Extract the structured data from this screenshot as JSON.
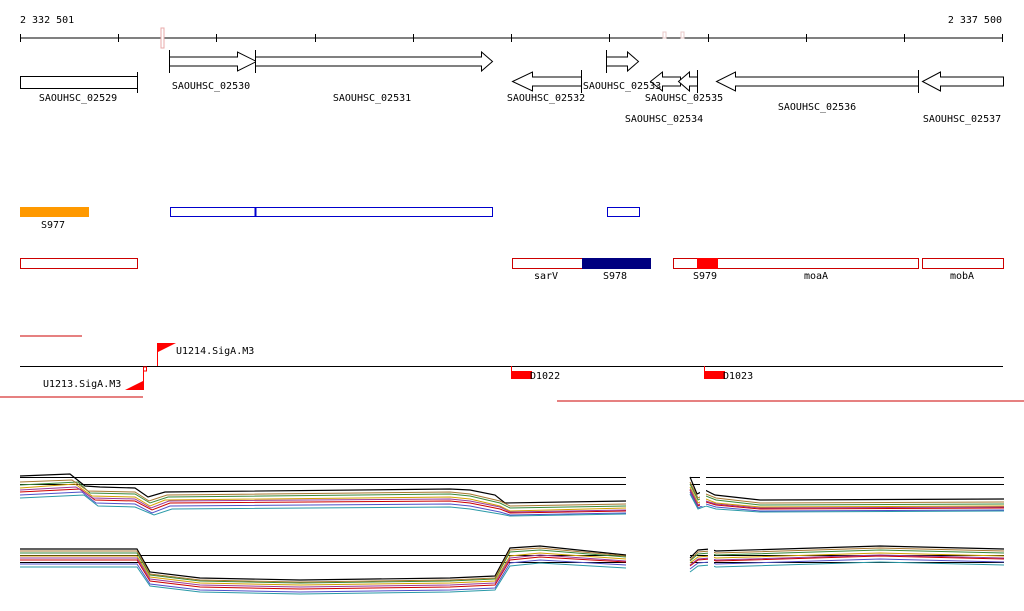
{
  "coordinates": {
    "start": "2 332 501",
    "end": "2 337 500"
  },
  "genes": [
    {
      "name": "SAOUHSC_02529",
      "strand": "none"
    },
    {
      "name": "SAOUHSC_02530",
      "strand": "+"
    },
    {
      "name": "SAOUHSC_02531",
      "strand": "+"
    },
    {
      "name": "SAOUHSC_02532",
      "strand": "-"
    },
    {
      "name": "SAOUHSC_02533",
      "strand": "+"
    },
    {
      "name": "SAOUHSC_02534",
      "strand": "-"
    },
    {
      "name": "SAOUHSC_02535",
      "strand": "-"
    },
    {
      "name": "SAOUHSC_02536",
      "strand": "-"
    },
    {
      "name": "SAOUHSC_02537",
      "strand": "-"
    }
  ],
  "regulatory_features": [
    "S977"
  ],
  "transcripts": [
    "sarV",
    "S978",
    "S979",
    "moaA",
    "mobA"
  ],
  "promoters": [
    "U1214.SigA.M3",
    "U1213.SigA.M3"
  ],
  "terminators": [
    "D1022",
    "D1023"
  ],
  "colors": {
    "gene_outline": "#000000",
    "feature_orange": "#ff9900",
    "operon_blue": "#0000cc",
    "transcript_red": "#cc0000",
    "transcript_navy": "#000080",
    "signal_red": "#ff0000",
    "expression_black": "#000000"
  },
  "expression_tracks": [
    {
      "strand": "+"
    },
    {
      "strand": "-"
    }
  ]
}
